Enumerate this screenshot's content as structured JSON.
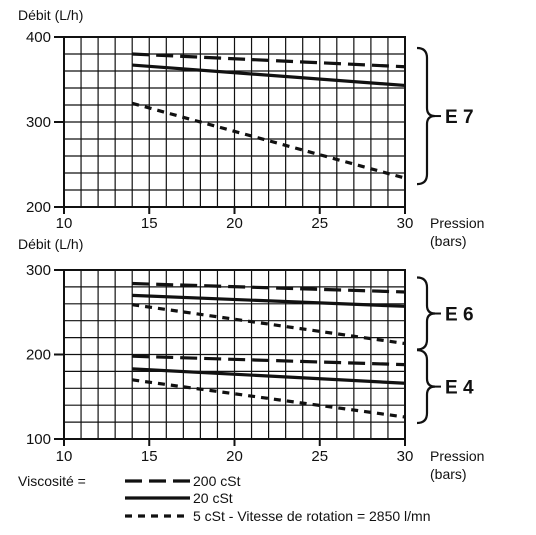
{
  "chart_data": [
    {
      "type": "line",
      "ylabel": "Débit (L/h)",
      "xlabel": "Pression",
      "xunit": "(bars)",
      "xlim": [
        10,
        30
      ],
      "ylim": [
        200,
        400
      ],
      "xticks": [
        10,
        15,
        20,
        25,
        30
      ],
      "yticks": [
        200,
        300,
        400
      ],
      "grid": true,
      "groups": [
        {
          "label": "E7",
          "series": [
            {
              "name": "200 cSt",
              "style": "long-dash",
              "x": [
                14,
                30
              ],
              "y": [
                380,
                365
              ]
            },
            {
              "name": "20 cSt",
              "style": "solid",
              "x": [
                14,
                30
              ],
              "y": [
                367,
                343
              ]
            },
            {
              "name": "5 cSt",
              "style": "short-dash",
              "x": [
                14,
                30
              ],
              "y": [
                322,
                234
              ]
            }
          ]
        }
      ]
    },
    {
      "type": "line",
      "ylabel": "Débit (L/h)",
      "xlabel": "Pression",
      "xunit": "(bars)",
      "xlim": [
        10,
        30
      ],
      "ylim": [
        100,
        300
      ],
      "xticks": [
        10,
        15,
        20,
        25,
        30
      ],
      "yticks": [
        100,
        200,
        300
      ],
      "grid": true,
      "groups": [
        {
          "label": "E6",
          "series": [
            {
              "name": "200 cSt",
              "style": "long-dash",
              "x": [
                14,
                30
              ],
              "y": [
                284,
                274
              ]
            },
            {
              "name": "20 cSt",
              "style": "solid",
              "x": [
                14,
                30
              ],
              "y": [
                270,
                257
              ]
            },
            {
              "name": "5 cSt",
              "style": "short-dash",
              "x": [
                14,
                30
              ],
              "y": [
                259,
                213
              ]
            }
          ]
        },
        {
          "label": "E4",
          "series": [
            {
              "name": "200 cSt",
              "style": "long-dash",
              "x": [
                14,
                30
              ],
              "y": [
                198,
                188
              ]
            },
            {
              "name": "20 cSt",
              "style": "solid",
              "x": [
                14,
                30
              ],
              "y": [
                183,
                166
              ]
            },
            {
              "name": "5 cSt",
              "style": "short-dash",
              "x": [
                14,
                30
              ],
              "y": [
                170,
                126
              ]
            }
          ]
        }
      ]
    }
  ],
  "legend": {
    "title": "Viscosité =",
    "items": [
      {
        "style": "long-dash",
        "label": "200 cSt"
      },
      {
        "style": "solid",
        "label": "20 cSt"
      },
      {
        "style": "short-dash",
        "label": "5 cSt - Vitesse de rotation = 2850 l/mn"
      }
    ]
  },
  "colors": {
    "ink": "#111111",
    "background": "#ffffff"
  }
}
